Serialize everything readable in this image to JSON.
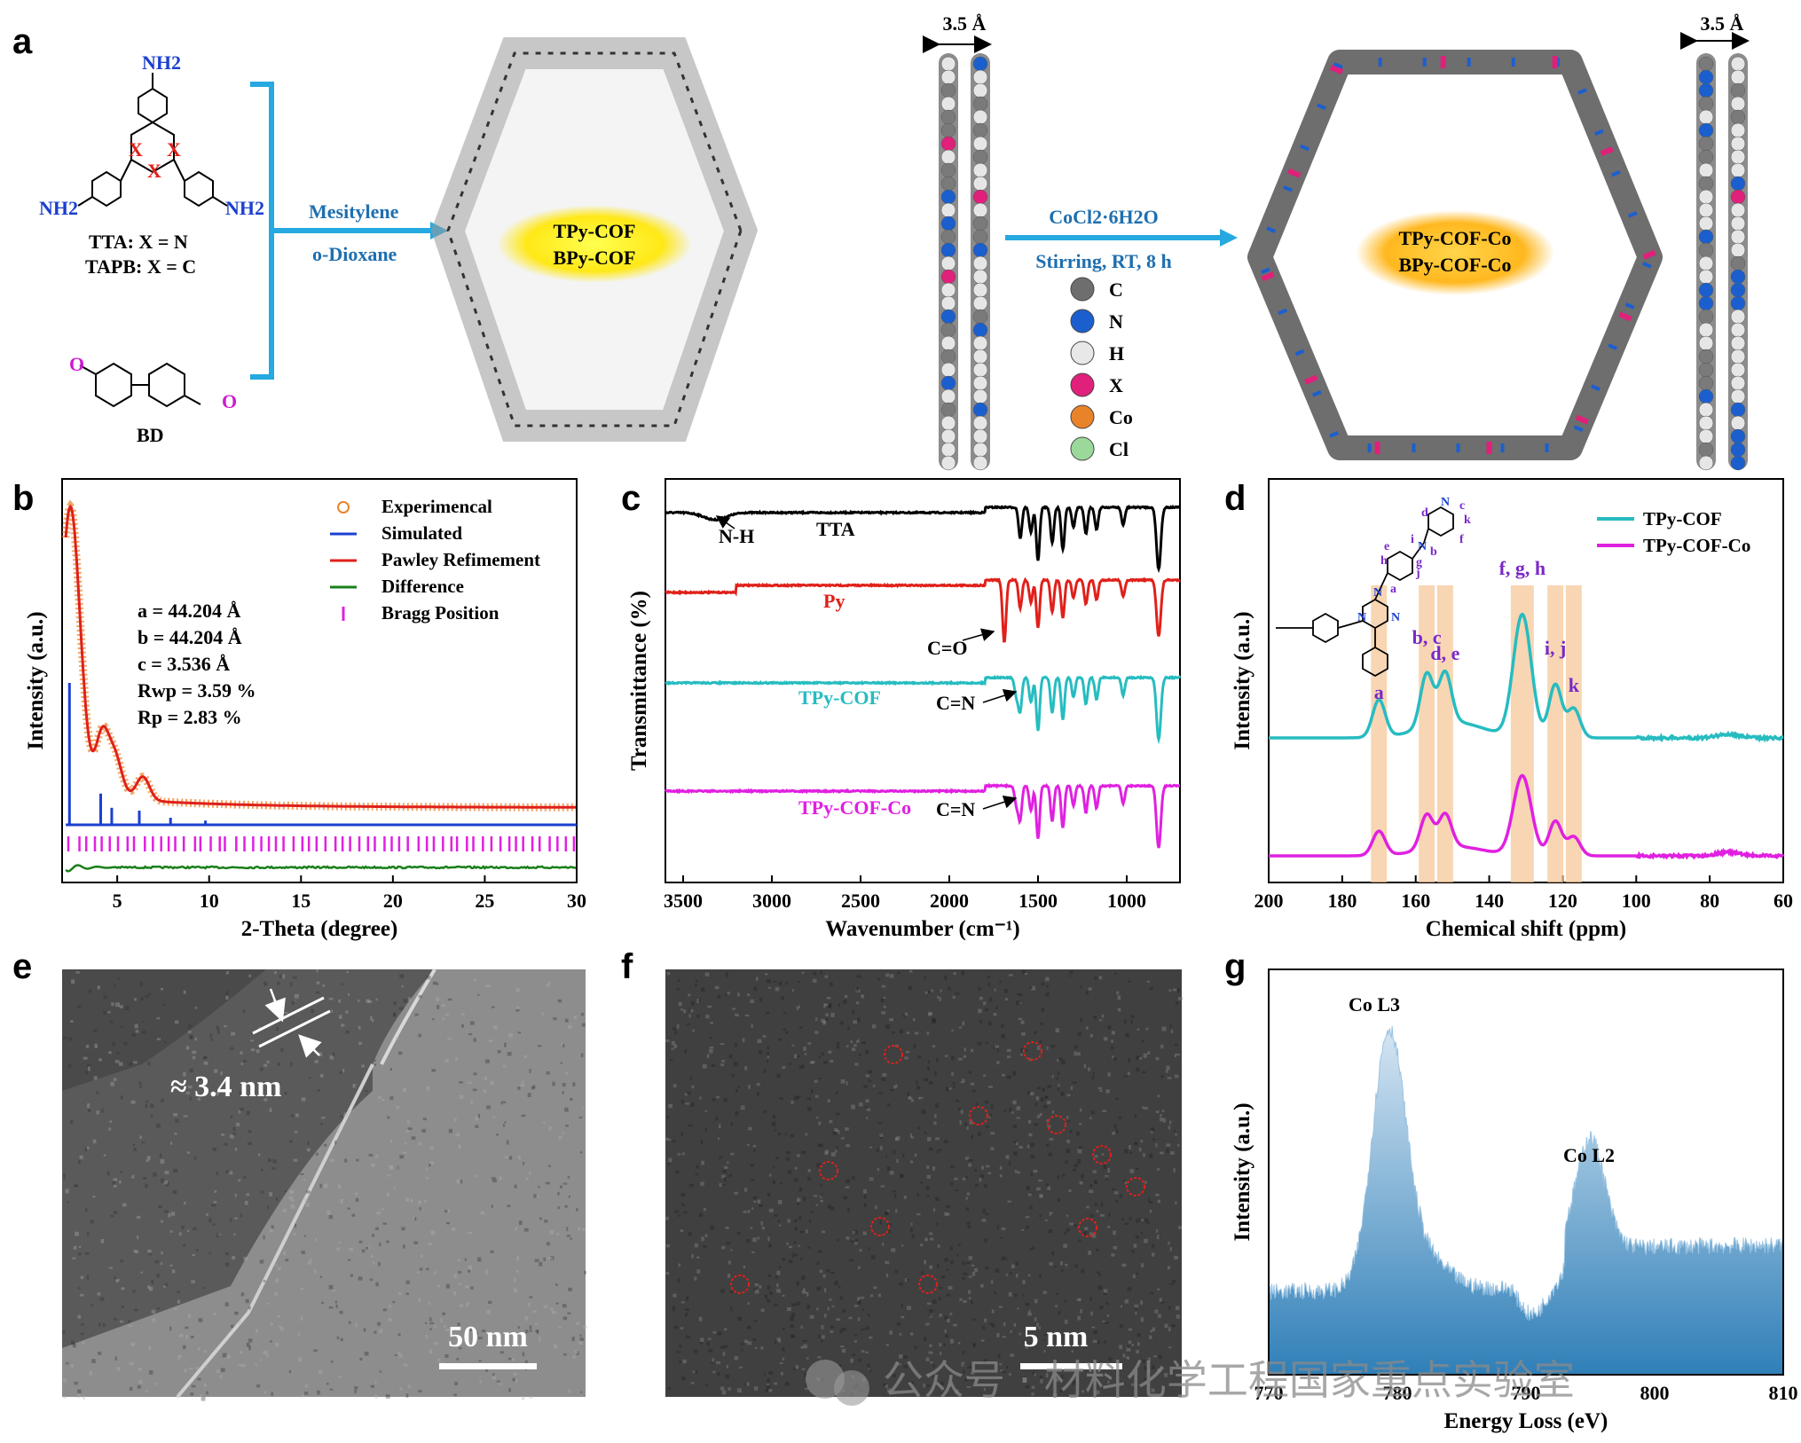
{
  "panel_labels": [
    "a",
    "b",
    "c",
    "d",
    "e",
    "f",
    "g"
  ],
  "panel_a": {
    "monomer_labels": [
      "NH2",
      "NH2",
      "NH2",
      "X",
      "X",
      "X"
    ],
    "monomer_caption": [
      "TTA: X = N",
      "TAPB: X = C"
    ],
    "aldehyde_label": "BD",
    "arrow1_top": "Mesitylene",
    "arrow1_bottom": "o-Dioxane",
    "pore1_text": [
      "TPy-COF",
      "BPy-COF"
    ],
    "spacing_label": "3.5 Å",
    "arrow2_top": "CoCl2·6H2O",
    "arrow2_bottom": "Stirring, RT, 8 h",
    "pore2_text": [
      "TPy-COF-Co",
      "BPy-COF-Co"
    ],
    "atom_legend": [
      {
        "label": "C",
        "color": "#6e6e6e"
      },
      {
        "label": "N",
        "color": "#1b5fcf"
      },
      {
        "label": "H",
        "color": "#e8e8e8"
      },
      {
        "label": "X",
        "color": "#e0207a"
      },
      {
        "label": "Co",
        "color": "#e8832a"
      },
      {
        "label": "Cl",
        "color": "#9bd99b"
      }
    ],
    "colors": {
      "arrow": "#26a9e0",
      "pore1": "#ffe817",
      "pore2": "#ffbf1f",
      "amine": "#1b3fcf",
      "aldehyde": "#d01ad0",
      "x_atom": "#e0201a"
    }
  },
  "chart_data": [
    {
      "panel": "b",
      "type": "line",
      "xlabel": "2-Theta (degree)",
      "ylabel": "Intensity (a.u.)",
      "xlim": [
        2,
        30
      ],
      "xticks": [
        5,
        10,
        15,
        20,
        25,
        30
      ],
      "legend": [
        "Experimencal",
        "Simulated",
        "Pawley Refimement",
        "Difference",
        "Bragg Position"
      ],
      "colors": {
        "exp": "#e8832a",
        "sim": "#1b3fcf",
        "pawley": "#e0201a",
        "diff": "#1a7f1a",
        "bragg": "#e020e0"
      },
      "params": [
        "a = 44.204 Å",
        "b = 44.204 Å",
        "c = 3.536 Å",
        "Rwp = 3.59 %",
        "Rp = 2.83 %"
      ],
      "pawley_peaks": [
        [
          2.45,
          1.0
        ],
        [
          4.2,
          0.2
        ],
        [
          4.9,
          0.12
        ],
        [
          6.4,
          0.08
        ]
      ],
      "simulated_peaks": [
        [
          2.4,
          1.0
        ],
        [
          4.1,
          0.22
        ],
        [
          4.7,
          0.12
        ],
        [
          6.2,
          0.1
        ],
        [
          7.9,
          0.05
        ],
        [
          9.8,
          0.03
        ]
      ]
    },
    {
      "panel": "c",
      "type": "line",
      "xlabel": "Wavenumber (cm⁻¹)",
      "ylabel": "Transmittance (%)",
      "xlim": [
        3600,
        700
      ],
      "xticks": [
        3500,
        3000,
        2500,
        2000,
        1500,
        1000
      ],
      "series": [
        {
          "name": "TTA",
          "color": "#000000",
          "annotation": "N-H"
        },
        {
          "name": "Py",
          "color": "#e0201a",
          "annotation": "C=O"
        },
        {
          "name": "TPy-COF",
          "color": "#26bcc0",
          "annotation": "C=N"
        },
        {
          "name": "TPy-COF-Co",
          "color": "#e020e0",
          "annotation": "C=N"
        }
      ]
    },
    {
      "panel": "d",
      "type": "line",
      "xlabel": "Chemical shift (ppm)",
      "ylabel": "Intensity (a.u.)",
      "xlim": [
        200,
        60
      ],
      "xticks": [
        200,
        180,
        160,
        140,
        120,
        100,
        80,
        60
      ],
      "series": [
        {
          "name": "TPy-COF",
          "color": "#26bcc0"
        },
        {
          "name": "TPy-COF-Co",
          "color": "#e020e0"
        }
      ],
      "peaks": [
        {
          "label": "a",
          "ppm": 170
        },
        {
          "label": "b, c",
          "ppm": 157
        },
        {
          "label": "d, e",
          "ppm": 152
        },
        {
          "label": "f, g, h",
          "ppm": 131
        },
        {
          "label": "i, j",
          "ppm": 122
        },
        {
          "label": "k",
          "ppm": 117
        }
      ],
      "highlight_color": "#f5c89a",
      "structure_labels": [
        "N",
        "N",
        "d",
        "c",
        "k",
        "f",
        "e",
        "b",
        "i",
        "j",
        "g",
        "h",
        "a",
        "N",
        "N",
        "N"
      ]
    },
    {
      "panel": "g",
      "type": "area",
      "xlabel": "Energy Loss (eV)",
      "ylabel": "Intensity (a.u.)",
      "xlim": [
        770,
        810
      ],
      "xticks": [
        770,
        780,
        790,
        800,
        810
      ],
      "annotations": [
        "Co L3",
        "Co L2"
      ],
      "peaks_ev": [
        779.5,
        795
      ],
      "color": "#3a8cc0"
    }
  ],
  "panel_e": {
    "scale_bar": "50 nm",
    "fringe_label": "≈ 3.4 nm"
  },
  "panel_f": {
    "scale_bar": "5 nm"
  },
  "watermark": "公众号 · 材料化学工程国家重点实验室"
}
